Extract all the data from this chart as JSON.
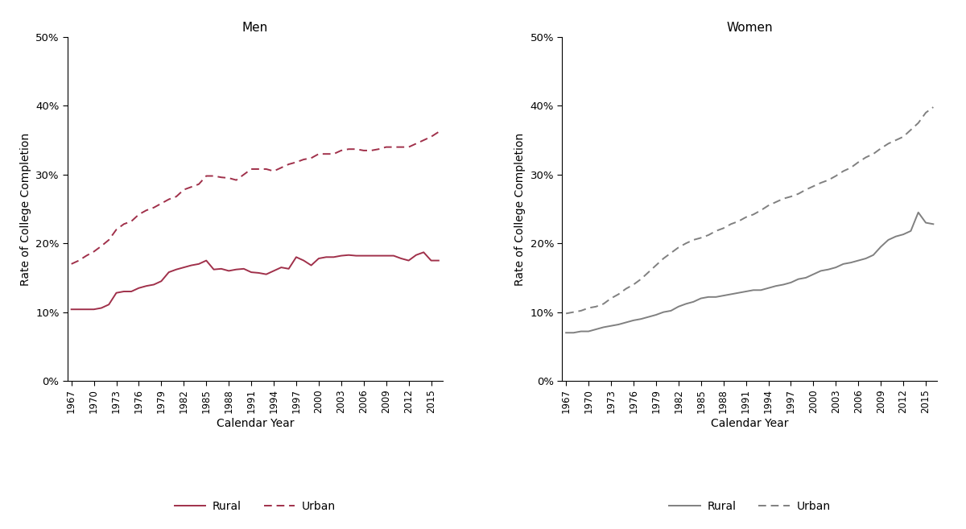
{
  "years": [
    1967,
    1968,
    1969,
    1970,
    1971,
    1972,
    1973,
    1974,
    1975,
    1976,
    1977,
    1978,
    1979,
    1980,
    1981,
    1982,
    1983,
    1984,
    1985,
    1986,
    1987,
    1988,
    1989,
    1990,
    1991,
    1992,
    1993,
    1994,
    1995,
    1996,
    1997,
    1998,
    1999,
    2000,
    2001,
    2002,
    2003,
    2004,
    2005,
    2006,
    2007,
    2008,
    2009,
    2010,
    2011,
    2012,
    2013,
    2014,
    2015,
    2016
  ],
  "men_rural": [
    0.104,
    0.104,
    0.104,
    0.104,
    0.106,
    0.111,
    0.128,
    0.13,
    0.13,
    0.135,
    0.138,
    0.14,
    0.145,
    0.158,
    0.162,
    0.165,
    0.168,
    0.17,
    0.175,
    0.162,
    0.163,
    0.16,
    0.162,
    0.163,
    0.158,
    0.157,
    0.155,
    0.16,
    0.165,
    0.163,
    0.18,
    0.175,
    0.168,
    0.178,
    0.18,
    0.18,
    0.182,
    0.183,
    0.182,
    0.182,
    0.182,
    0.182,
    0.182,
    0.182,
    0.178,
    0.175,
    0.183,
    0.187,
    0.175,
    0.175
  ],
  "men_urban": [
    0.17,
    0.175,
    0.182,
    0.188,
    0.196,
    0.205,
    0.22,
    0.228,
    0.232,
    0.242,
    0.248,
    0.252,
    0.258,
    0.264,
    0.268,
    0.278,
    0.282,
    0.286,
    0.298,
    0.298,
    0.296,
    0.295,
    0.292,
    0.3,
    0.308,
    0.308,
    0.308,
    0.305,
    0.31,
    0.315,
    0.318,
    0.322,
    0.324,
    0.33,
    0.33,
    0.33,
    0.335,
    0.337,
    0.337,
    0.335,
    0.335,
    0.337,
    0.34,
    0.34,
    0.34,
    0.34,
    0.345,
    0.35,
    0.355,
    0.362
  ],
  "women_rural": [
    0.07,
    0.07,
    0.072,
    0.072,
    0.075,
    0.078,
    0.08,
    0.082,
    0.085,
    0.088,
    0.09,
    0.093,
    0.096,
    0.1,
    0.102,
    0.108,
    0.112,
    0.115,
    0.12,
    0.122,
    0.122,
    0.124,
    0.126,
    0.128,
    0.13,
    0.132,
    0.132,
    0.135,
    0.138,
    0.14,
    0.143,
    0.148,
    0.15,
    0.155,
    0.16,
    0.162,
    0.165,
    0.17,
    0.172,
    0.175,
    0.178,
    0.183,
    0.195,
    0.205,
    0.21,
    0.213,
    0.218,
    0.245,
    0.23,
    0.228
  ],
  "women_urban": [
    0.098,
    0.1,
    0.102,
    0.106,
    0.108,
    0.112,
    0.12,
    0.126,
    0.134,
    0.14,
    0.148,
    0.158,
    0.168,
    0.178,
    0.186,
    0.194,
    0.2,
    0.205,
    0.208,
    0.212,
    0.218,
    0.222,
    0.228,
    0.232,
    0.238,
    0.242,
    0.248,
    0.255,
    0.26,
    0.265,
    0.268,
    0.272,
    0.278,
    0.283,
    0.288,
    0.292,
    0.298,
    0.305,
    0.31,
    0.318,
    0.325,
    0.33,
    0.338,
    0.345,
    0.35,
    0.355,
    0.365,
    0.375,
    0.39,
    0.398
  ],
  "men_color": "#A0304A",
  "women_color": "#808080",
  "xlabel": "Calendar Year",
  "ylabel": "Rate of College Completion",
  "title_men": "Men",
  "title_women": "Women",
  "xtick_years": [
    1967,
    1970,
    1973,
    1976,
    1979,
    1982,
    1985,
    1988,
    1991,
    1994,
    1997,
    2000,
    2003,
    2006,
    2009,
    2012,
    2015
  ],
  "yticks": [
    0.0,
    0.1,
    0.2,
    0.3,
    0.4,
    0.5
  ]
}
